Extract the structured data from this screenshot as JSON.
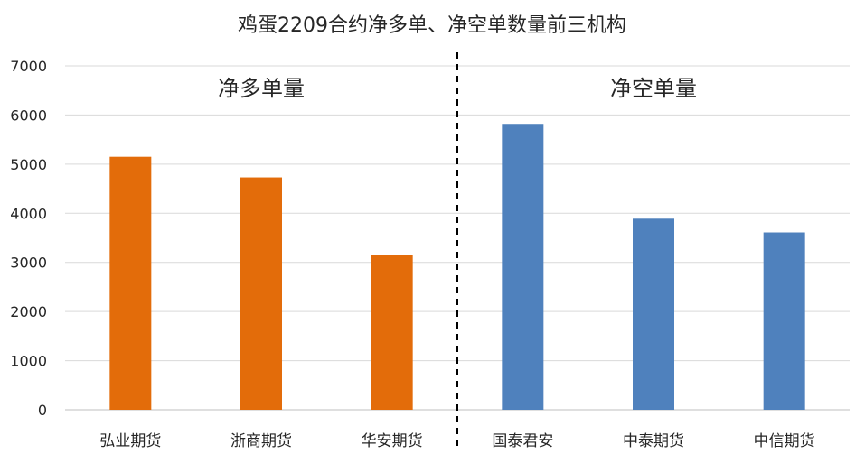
{
  "chart_data": {
    "type": "bar",
    "title": "鸡蛋2209合约净多单、净空单数量前三机构",
    "ylim": [
      0,
      7000
    ],
    "yticks": [
      0,
      1000,
      2000,
      3000,
      4000,
      5000,
      6000,
      7000
    ],
    "grid": true,
    "categories": [
      "弘业期货",
      "浙商期货",
      "华安期货",
      "国泰君安",
      "中泰期货",
      "中信期货"
    ],
    "values": [
      5150,
      4730,
      3150,
      5820,
      3890,
      3610
    ],
    "groups": [
      {
        "label": "净多单量",
        "start": 0,
        "end": 2,
        "color": "#e36c0a"
      },
      {
        "label": "净空单量",
        "start": 3,
        "end": 5,
        "color": "#4f81bd"
      }
    ]
  }
}
